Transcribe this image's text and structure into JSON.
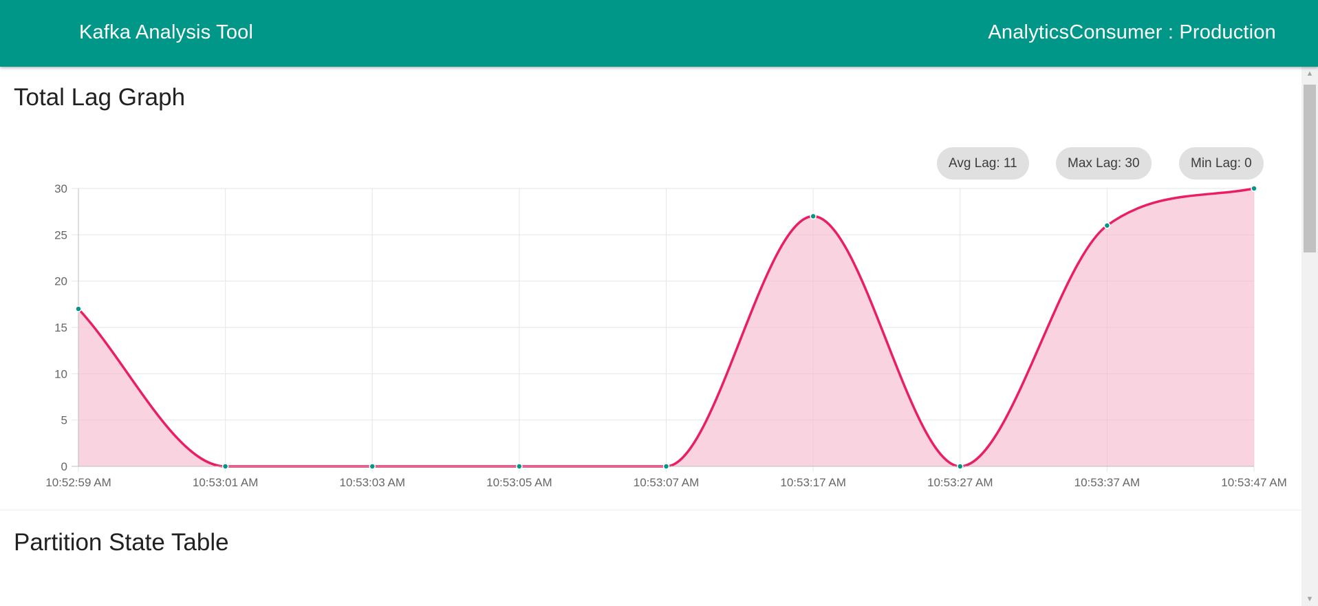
{
  "header": {
    "app_title": "Kafka Analysis Tool",
    "consumer_label": "AnalyticsConsumer : Production",
    "color": "#009688"
  },
  "lag_section": {
    "title": "Total Lag Graph",
    "stats": {
      "avg": "Avg Lag: 11",
      "max": "Max Lag: 30",
      "min": "Min Lag: 0"
    }
  },
  "table_section": {
    "title": "Partition State Table"
  },
  "chart_data": {
    "type": "area",
    "title": "",
    "xlabel": "",
    "ylabel": "",
    "x_ticks": [
      "10:52:59 AM",
      "10:53:01 AM",
      "10:53:03 AM",
      "10:53:05 AM",
      "10:53:07 AM",
      "10:53:17 AM",
      "10:53:27 AM",
      "10:53:37 AM",
      "10:53:47 AM"
    ],
    "ylim": [
      0,
      30
    ],
    "y_ticks": [
      0,
      5,
      10,
      15,
      20,
      25,
      30
    ],
    "grid": true,
    "points": [
      {
        "x": "10:52:59 AM",
        "y": 17
      },
      {
        "x": "10:53:01 AM",
        "y": 0
      },
      {
        "x": "10:53:03 AM",
        "y": 0
      },
      {
        "x": "10:53:05 AM",
        "y": 0
      },
      {
        "x": "10:53:07 AM",
        "y": 0
      },
      {
        "x": "10:53:17 AM",
        "y": 27
      },
      {
        "x": "10:53:27 AM",
        "y": 0
      },
      {
        "x": "10:53:37 AM",
        "y": 26
      },
      {
        "x": "10:53:47 AM",
        "y": 30
      }
    ],
    "line_color": "#e91e63",
    "fill_color": "#f8bbd0",
    "point_color": "#009688"
  },
  "scrollbar": {
    "up_icon": "triangle-up-icon",
    "down_icon": "triangle-down-icon"
  }
}
